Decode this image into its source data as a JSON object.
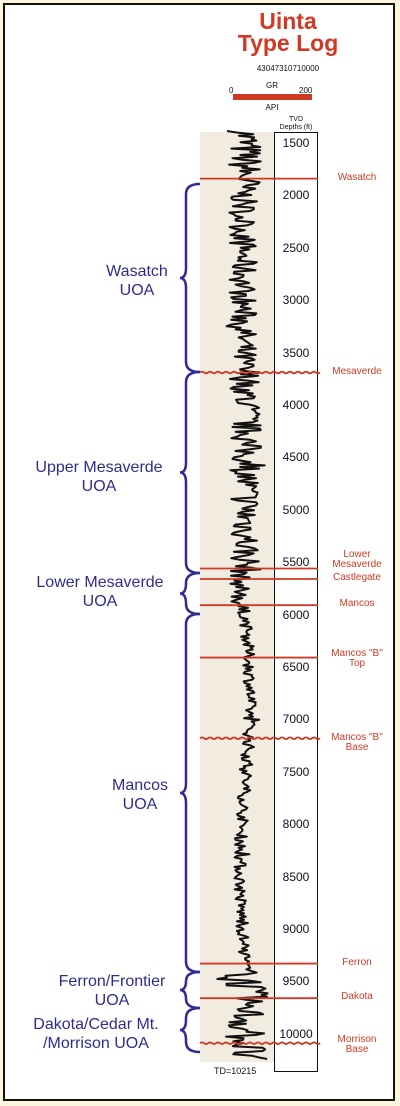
{
  "title": [
    "Uinta",
    "Type Log"
  ],
  "well_id": "43047310710000",
  "gr_scale": {
    "label": "GR",
    "min": "0",
    "max": "200",
    "unit": "API",
    "bar_color": "#d03a25"
  },
  "depth_header": [
    "TVD",
    "Depths (ft)"
  ],
  "total_depth": "TD=10215",
  "colors": {
    "title": "#d03a25",
    "marker": "#d03a25",
    "uoa": "#2e2d8f",
    "shade": "#f2ece0",
    "log": "#111111"
  },
  "depths": [
    "1500",
    "2000",
    "2500",
    "3000",
    "3500",
    "4000",
    "4500",
    "5000",
    "5500",
    "6000",
    "6500",
    "7000",
    "7500",
    "8000",
    "8500",
    "9000",
    "9500",
    "10000"
  ],
  "markers": [
    {
      "label": [
        "Wasatch"
      ],
      "depth": 1840,
      "style": "solid"
    },
    {
      "label": [
        "Mesaverde"
      ],
      "depth": 3690,
      "style": "wavy"
    },
    {
      "label": [
        "Lower",
        "Mesaverde"
      ],
      "depth": 5560,
      "style": "solid"
    },
    {
      "label": [
        "Castlegate"
      ],
      "depth": 5660,
      "style": "solid"
    },
    {
      "label": [
        "Mancos"
      ],
      "depth": 5910,
      "style": "solid"
    },
    {
      "label": [
        "Mancos \"B\"",
        "Top"
      ],
      "depth": 6410,
      "style": "solid"
    },
    {
      "label": [
        "Mancos \"B\"",
        "Base"
      ],
      "depth": 7180,
      "style": "wavy"
    },
    {
      "label": [
        "Ferron"
      ],
      "depth": 9330,
      "style": "solid"
    },
    {
      "label": [
        "Dakota"
      ],
      "depth": 9660,
      "style": "solid"
    },
    {
      "label": [
        "Morrison",
        "Base"
      ],
      "depth": 10090,
      "style": "wavy"
    }
  ],
  "uoa": [
    {
      "label": [
        "Wasatch",
        "UOA"
      ]
    },
    {
      "label": [
        "Upper Mesaverde",
        "UOA"
      ]
    },
    {
      "label": [
        "Lower Mesaverde",
        "UOA"
      ]
    },
    {
      "label": [
        "Mancos",
        "UOA"
      ]
    },
    {
      "label": [
        "Ferron/Frontier",
        "UOA"
      ]
    },
    {
      "label": [
        "Dakota/Cedar Mt.",
        "/Morrison UOA"
      ]
    }
  ]
}
